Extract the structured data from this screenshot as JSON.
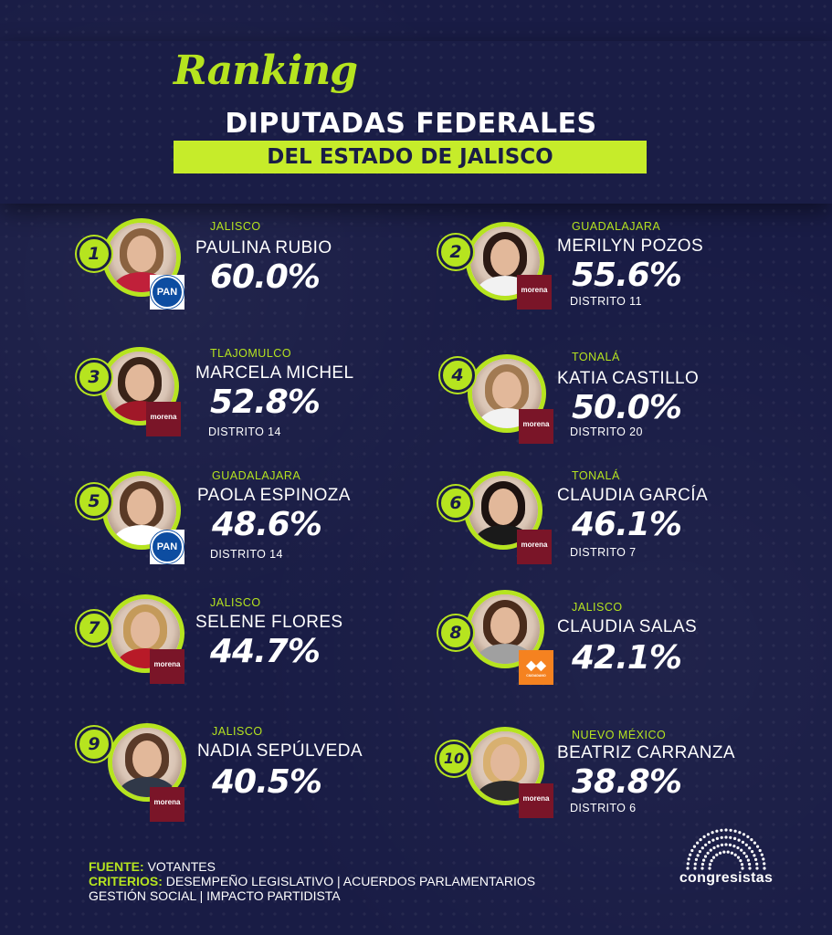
{
  "header": {
    "script": "Ranking",
    "title": "DIPUTADAS FEDERALES",
    "subtitle": "DEL ESTADO DE JALISCO"
  },
  "ranking": [
    {
      "rank": "1",
      "city": "JALISCO",
      "name": "PAULINA RUBIO",
      "pct": "60.0%",
      "district": "",
      "party": "PAN"
    },
    {
      "rank": "2",
      "city": "GUADALAJARA",
      "name": "MERILYN POZOS",
      "pct": "55.6%",
      "district": "DISTRITO 11",
      "party": "morena"
    },
    {
      "rank": "3",
      "city": "TLAJOMULCO",
      "name": "MARCELA MICHEL",
      "pct": "52.8%",
      "district": "DISTRITO 14",
      "party": "morena"
    },
    {
      "rank": "4",
      "city": "TONALÁ",
      "name": "KATIA CASTILLO",
      "pct": "50.0%",
      "district": "DISTRITO 20",
      "party": "morena"
    },
    {
      "rank": "5",
      "city": "GUADALAJARA",
      "name": "PAOLA ESPINOZA",
      "pct": "48.6%",
      "district": "DISTRITO 14",
      "party": "PAN"
    },
    {
      "rank": "6",
      "city": "TONALÁ",
      "name": "CLAUDIA GARCÍA",
      "pct": "46.1%",
      "district": "DISTRITO 7",
      "party": "morena"
    },
    {
      "rank": "7",
      "city": "JALISCO",
      "name": "SELENE FLORES",
      "pct": "44.7%",
      "district": "",
      "party": "morena"
    },
    {
      "rank": "8",
      "city": "JALISCO",
      "name": "CLAUDIA SALAS",
      "pct": "42.1%",
      "district": "",
      "party": "MC"
    },
    {
      "rank": "9",
      "city": "JALISCO",
      "name": "NADIA SEPÚLVEDA",
      "pct": "40.5%",
      "district": "",
      "party": "morena"
    },
    {
      "rank": "10",
      "city": "NUEVO MÉXICO",
      "name": "BEATRIZ CARRANZA",
      "pct": "38.8%",
      "district": "DISTRITO 6",
      "party": "morena"
    }
  ],
  "footer": {
    "fuente_label": "FUENTE:",
    "fuente_value": "VOTANTES",
    "criterios_label": "CRITERIOS:",
    "criterios_value": "DESEMPEÑO LEGISLATIVO | ACUERDOS PARLAMENTARIOS",
    "criterios_line2": "GESTIÓN SOCIAL | IMPACTO PARTIDISTA"
  },
  "brand": {
    "name": "congresistas"
  },
  "colors": {
    "accent": "#b6e41f",
    "background": "#191c45",
    "morena": "#7a1528",
    "pan": "#0d4da1",
    "mc": "#f58220"
  }
}
